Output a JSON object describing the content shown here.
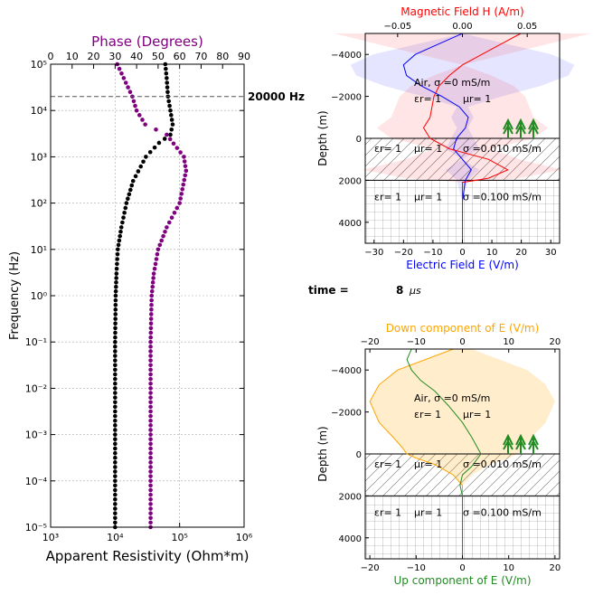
{
  "figure": {
    "time_label": "time =",
    "time_value": "8",
    "time_unit": "μs"
  },
  "chart_data": [
    {
      "type": "scatter",
      "panel": "left",
      "xlabel_bottom": "Apparent Resistivity (Ohm*m)",
      "xlabel_top": "Phase (Degrees)",
      "ylabel": "Frequency (Hz)",
      "x_bottom_scale": "log",
      "x_bottom_lim": [
        1000,
        1000000
      ],
      "x_bottom_ticks": [
        "10³",
        "10⁴",
        "10⁵",
        "10⁶"
      ],
      "x_top_lim": [
        0,
        90
      ],
      "x_top_ticks": [
        "0",
        "10",
        "20",
        "30",
        "40",
        "50",
        "60",
        "70",
        "80",
        "90"
      ],
      "y_scale": "log",
      "y_lim": [
        1e-05,
        100000
      ],
      "y_ticks": [
        "10⁻⁵",
        "10⁻⁴",
        "10⁻³",
        "10⁻²",
        "10⁻¹",
        "10⁰",
        "10¹",
        "10²",
        "10³",
        "10⁴",
        "10⁵"
      ],
      "grid": true,
      "marker_line": {
        "y": 20000,
        "label": "20000 Hz"
      },
      "colors": {
        "resistivity": "#000000",
        "phase": "#800080"
      },
      "series": [
        {
          "name": "Apparent Resistivity",
          "axis": "bottom",
          "points": [
            [
              60000,
              100000
            ],
            [
              63000,
              50000
            ],
            [
              66000,
              20000
            ],
            [
              72000,
              10000
            ],
            [
              78000,
              5000
            ],
            [
              72000,
              3000
            ],
            [
              48000,
              2000
            ],
            [
              30000,
              1000
            ],
            [
              19000,
              300
            ],
            [
              15000,
              100
            ],
            [
              12500,
              30
            ],
            [
              11000,
              10
            ],
            [
              10500,
              3
            ],
            [
              10200,
              1
            ],
            [
              10000,
              0.1
            ],
            [
              10000,
              0.01
            ],
            [
              10000,
              0.001
            ],
            [
              10000,
              0.0001
            ],
            [
              10000,
              1e-05
            ]
          ]
        },
        {
          "name": "Phase",
          "axis": "top",
          "points": [
            [
              31,
              100000
            ],
            [
              34,
              50000
            ],
            [
              38,
              20000
            ],
            [
              40,
              10000
            ],
            [
              44,
              5000
            ],
            [
              54,
              3000
            ],
            [
              62,
              1000
            ],
            [
              63,
              500
            ],
            [
              60,
              100
            ],
            [
              54,
              30
            ],
            [
              50,
              10
            ],
            [
              48,
              3
            ],
            [
              47,
              1
            ],
            [
              46.5,
              0.1
            ],
            [
              46.5,
              0.01
            ],
            [
              46.5,
              0.001
            ],
            [
              46.5,
              0.0001
            ],
            [
              46.5,
              1e-05
            ]
          ]
        }
      ]
    },
    {
      "type": "line",
      "panel": "top-right",
      "title": "Magnetic Field H (A/m)",
      "xlabel": "Electric Field E (V/m)",
      "ylabel": "Depth (m)",
      "x_bottom_lim": [
        -33,
        33
      ],
      "x_bottom_ticks": [
        "−30",
        "−20",
        "−10",
        "0",
        "10",
        "20",
        "30"
      ],
      "x_top_lim": [
        -0.075,
        0.075
      ],
      "x_top_ticks": [
        "−0.05",
        "0.00",
        "0.05"
      ],
      "y_lim": [
        -5000,
        5000
      ],
      "y_ticks": [
        "−4000",
        "−2000",
        "0",
        "2000",
        "4000"
      ],
      "layer_boundaries_m": [
        0,
        2000
      ],
      "colors": {
        "e_field": "#0000ff",
        "h_field": "#ff0000",
        "e_envelope": "#aaaaff",
        "h_envelope": "#ffaaaa",
        "trees": "#228b22"
      },
      "layers": [
        {
          "text1": "Air, σ =0 mS/m",
          "text2a": "εr= 1",
          "text2b": "μr= 1"
        },
        {
          "text1a": "εr= 1",
          "text1b": "μr= 1",
          "text2": "σ =0.010 mS/m"
        },
        {
          "text1a": "εr= 1",
          "text1b": "μr= 1",
          "text2": "σ =0.100 mS/m"
        }
      ],
      "series": [
        {
          "name": "E",
          "axis": "bottom",
          "points": [
            [
              0,
              -5000
            ],
            [
              -8,
              -4500
            ],
            [
              -16,
              -4000
            ],
            [
              -20,
              -3500
            ],
            [
              -19,
              -3000
            ],
            [
              -14,
              -2500
            ],
            [
              -7,
              -2000
            ],
            [
              -1,
              -1500
            ],
            [
              2,
              -1000
            ],
            [
              1,
              -500
            ],
            [
              -2,
              0
            ],
            [
              -3,
              500
            ],
            [
              0,
              1000
            ],
            [
              3,
              1500
            ],
            [
              1,
              2000
            ],
            [
              0,
              3000
            ],
            [
              0,
              5000
            ]
          ]
        },
        {
          "name": "H",
          "axis": "top",
          "points": [
            [
              0.045,
              -5000
            ],
            [
              0.03,
              -4500
            ],
            [
              0.015,
              -4000
            ],
            [
              0.0,
              -3500
            ],
            [
              -0.01,
              -3000
            ],
            [
              -0.018,
              -2500
            ],
            [
              -0.022,
              -2000
            ],
            [
              -0.025,
              -1000
            ],
            [
              -0.03,
              -500
            ],
            [
              -0.025,
              0
            ],
            [
              -0.01,
              500
            ],
            [
              0.02,
              1000
            ],
            [
              0.035,
              1500
            ],
            [
              0.02,
              1900
            ],
            [
              0.0,
              2100
            ],
            [
              0.0,
              5000
            ]
          ]
        }
      ]
    },
    {
      "type": "line",
      "panel": "bottom-right",
      "title": "Down component of E (V/m)",
      "xlabel": "Up component of E (V/m)",
      "ylabel": "Depth (m)",
      "x_lim": [
        -21,
        21
      ],
      "x_ticks": [
        "−20",
        "−10",
        "0",
        "10",
        "20"
      ],
      "y_lim": [
        -5000,
        5000
      ],
      "y_ticks": [
        "−4000",
        "−2000",
        "0",
        "2000",
        "4000"
      ],
      "layer_boundaries_m": [
        0,
        2000
      ],
      "colors": {
        "down": "#ffa500",
        "up": "#228b22",
        "down_envelope": "#ffd9a6"
      },
      "layers": [
        {
          "text1": "Air, σ =0 mS/m",
          "text2a": "εr= 1",
          "text2b": "μr= 1"
        },
        {
          "text1a": "εr= 1",
          "text1b": "μr= 1",
          "text2": "σ =0.010 mS/m"
        },
        {
          "text1a": "εr= 1",
          "text1b": "μr= 1",
          "text2": "σ =0.100 mS/m"
        }
      ],
      "series": [
        {
          "name": "Down",
          "points": [
            [
              -2,
              -5000
            ],
            [
              -8,
              -4500
            ],
            [
              -14,
              -4000
            ],
            [
              -18,
              -3300
            ],
            [
              -20,
              -2500
            ],
            [
              -18,
              -1500
            ],
            [
              -15,
              -800
            ],
            [
              -13,
              -300
            ],
            [
              -12,
              0
            ],
            [
              -10,
              200
            ],
            [
              -6,
              500
            ],
            [
              -2,
              1000
            ],
            [
              0,
              1500
            ],
            [
              0,
              2000
            ],
            [
              0,
              5000
            ]
          ]
        },
        {
          "name": "Up",
          "points": [
            [
              -11,
              -5000
            ],
            [
              -12,
              -4500
            ],
            [
              -11,
              -4000
            ],
            [
              -9,
              -3500
            ],
            [
              -6,
              -3000
            ],
            [
              -3,
              -2300
            ],
            [
              0,
              -1500
            ],
            [
              2,
              -800
            ],
            [
              4,
              0
            ],
            [
              2,
              600
            ],
            [
              0,
              1000
            ],
            [
              -0.5,
              1500
            ],
            [
              0,
              2000
            ],
            [
              0,
              5000
            ]
          ]
        }
      ]
    }
  ]
}
